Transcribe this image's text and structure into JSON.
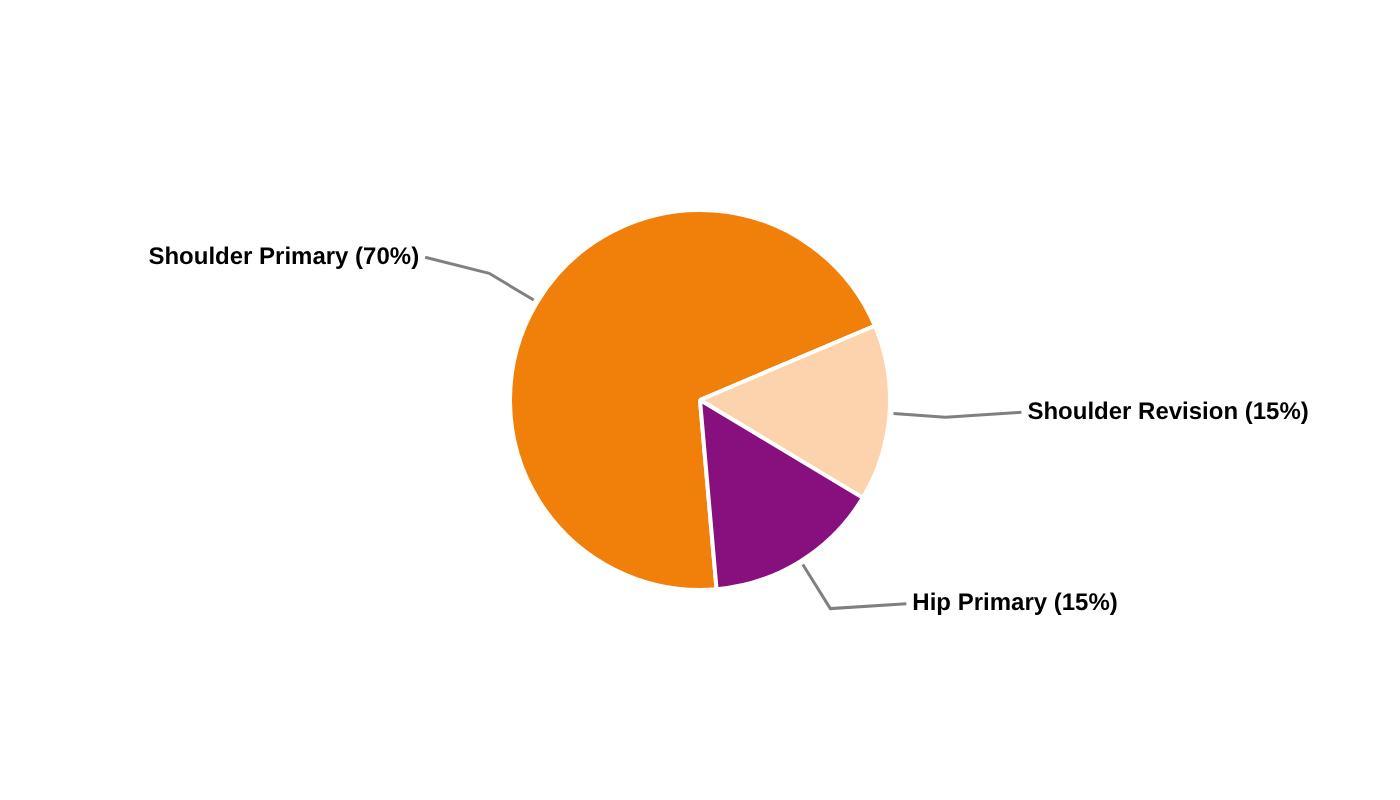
{
  "chart_data": {
    "type": "pie",
    "categories": [
      "Shoulder Primary",
      "Shoulder Revision",
      "Hip Primary"
    ],
    "values": [
      70,
      15,
      15
    ],
    "colors": [
      "#f0800a",
      "#fcd3ac",
      "#87107e"
    ],
    "value_labels": [
      "(70%)",
      "(15%)",
      "(15%)"
    ],
    "legend": false
  }
}
